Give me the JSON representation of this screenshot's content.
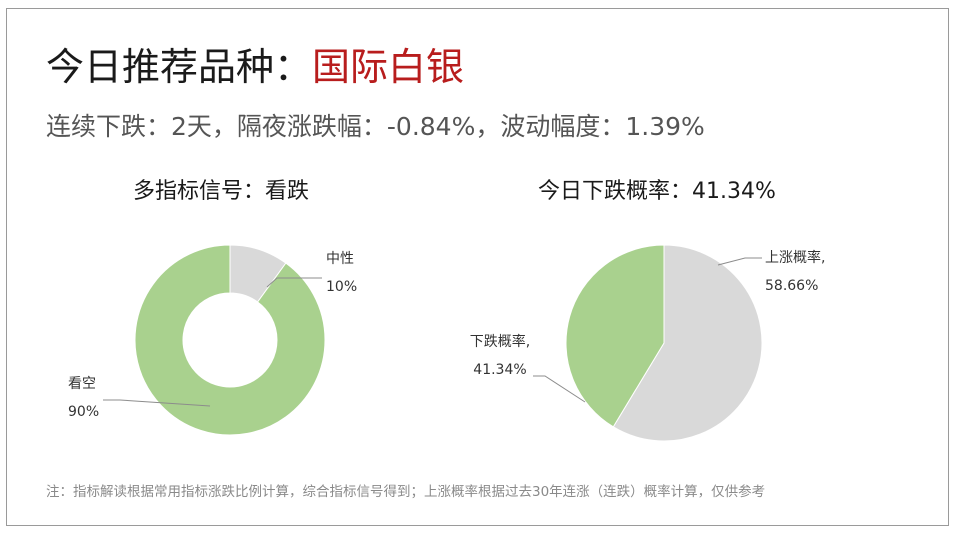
{
  "header": {
    "title_prefix": "今日推荐品种：",
    "title_highlight": "国际白银",
    "subtitle": "连续下跌：2天，隔夜涨跌幅：-0.84%，波动幅度：1.39%"
  },
  "chart_data": [
    {
      "type": "pie",
      "donut": true,
      "title": "多指标信号：看跌",
      "slices": [
        {
          "label": "中性",
          "value": 10,
          "value_label": "10%",
          "color": "#d9d9d9"
        },
        {
          "label": "看空",
          "value": 90,
          "value_label": "90%",
          "color": "#a9d18e"
        }
      ]
    },
    {
      "type": "pie",
      "donut": false,
      "title": "今日下跌概率：41.34%",
      "slices": [
        {
          "label": "上涨概率,",
          "value": 58.66,
          "value_label": "58.66%",
          "color": "#d9d9d9"
        },
        {
          "label": "下跌概率,",
          "value": 41.34,
          "value_label": "41.34%",
          "color": "#a9d18e"
        }
      ]
    }
  ],
  "footnote": "注：指标解读根据常用指标涨跌比例计算，综合指标信号得到；上涨概率根据过去30年连涨（连跌）概率计算，仅供参考"
}
